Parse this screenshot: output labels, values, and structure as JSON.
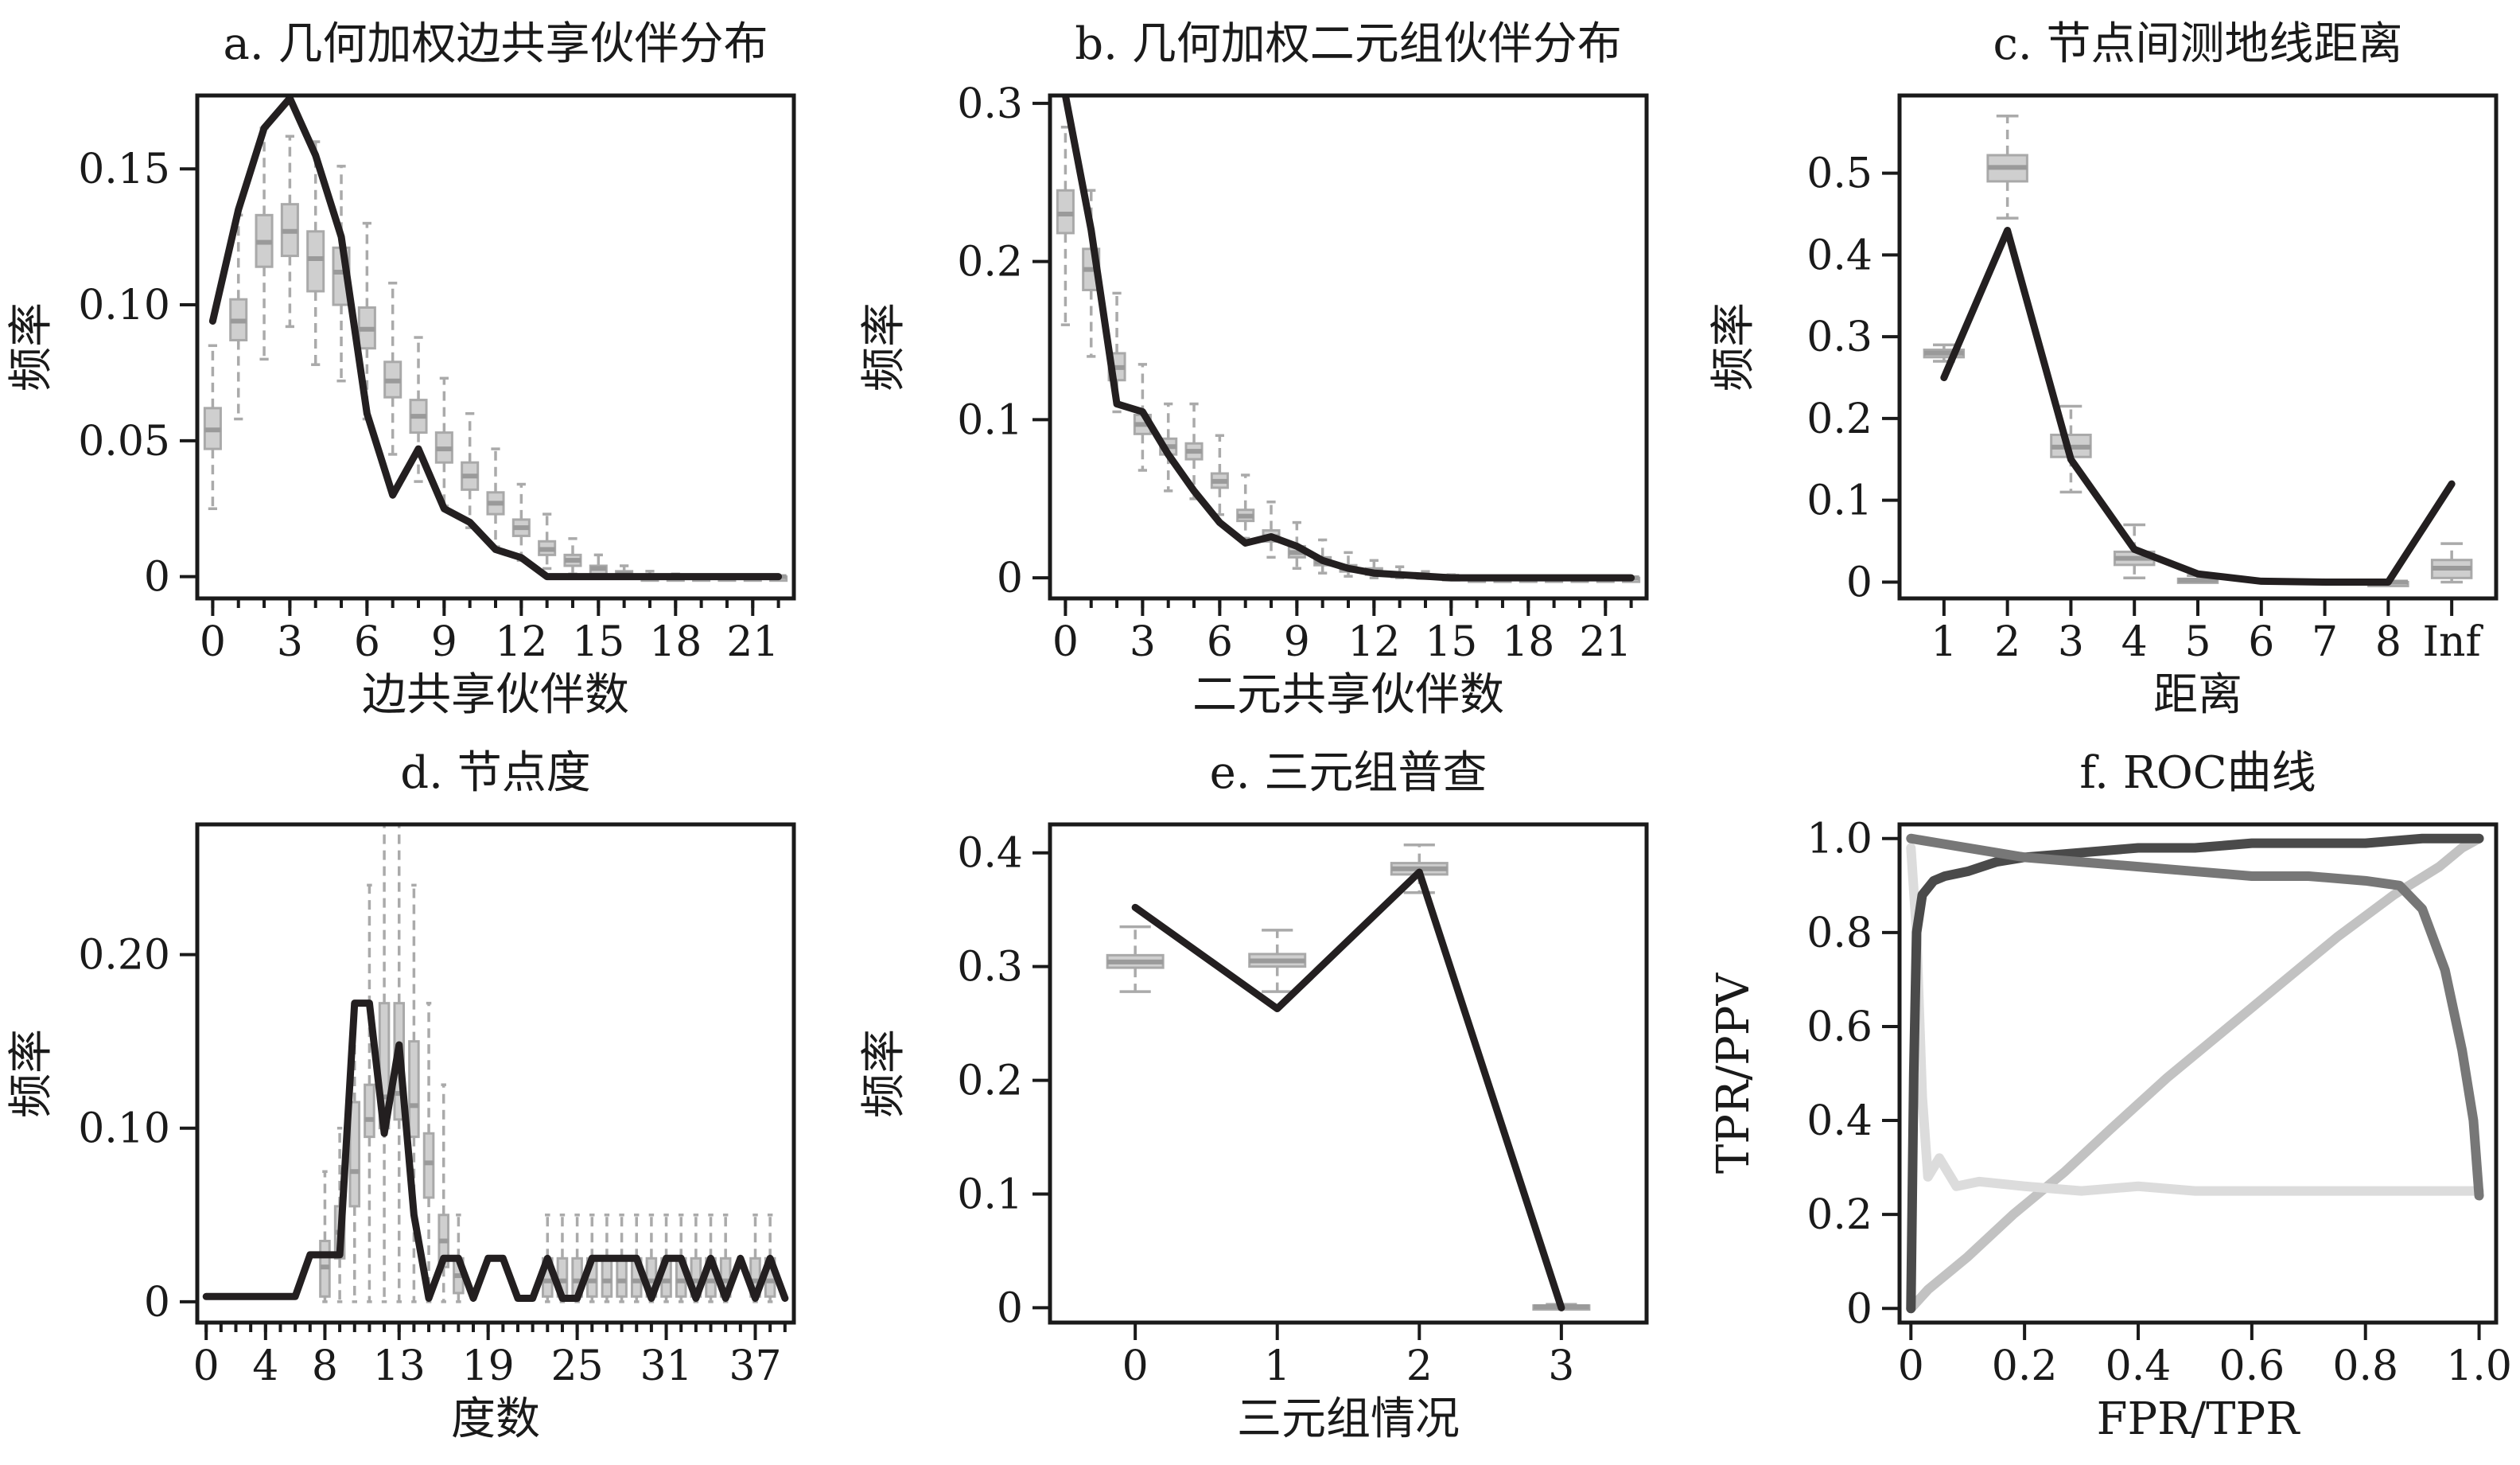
{
  "chart_data": [
    {
      "id": "a",
      "type": "boxplot+line",
      "title": "a. 几何加权边共享伙伴分布",
      "xlabel": "边共享伙伴数",
      "ylabel": "频率",
      "xlim": [
        -0.6,
        22.6
      ],
      "ylim": [
        -0.008,
        0.177
      ],
      "xticks": [
        0,
        3,
        6,
        9,
        12,
        15,
        18,
        21
      ],
      "yticks": [
        0,
        0.05,
        0.1,
        0.15
      ],
      "ytick_labels": [
        "0",
        "0.05",
        "0.10",
        "0.15"
      ],
      "minor_xticks": true,
      "observed": {
        "x": [
          0,
          1,
          2,
          3,
          4,
          5,
          6,
          7,
          8,
          9,
          10,
          11,
          12,
          13,
          14,
          15,
          16,
          17,
          18,
          19,
          20,
          21,
          22
        ],
        "y": [
          0.094,
          0.135,
          0.165,
          0.176,
          0.155,
          0.125,
          0.06,
          0.03,
          0.047,
          0.025,
          0.02,
          0.01,
          0.007,
          0,
          0,
          0,
          0,
          0,
          0,
          0,
          0,
          0,
          0
        ]
      },
      "boxes": {
        "x": [
          0,
          1,
          2,
          3,
          4,
          5,
          6,
          7,
          8,
          9,
          10,
          11,
          12,
          13,
          14,
          15,
          16,
          17,
          18,
          19,
          20,
          21,
          22
        ],
        "median": [
          0.054,
          0.094,
          0.123,
          0.127,
          0.117,
          0.112,
          0.091,
          0.072,
          0.059,
          0.047,
          0.037,
          0.027,
          0.018,
          0.01,
          0.006,
          0.003,
          0.001,
          0,
          0,
          0,
          0,
          0,
          0
        ],
        "q1": [
          0.047,
          0.087,
          0.114,
          0.118,
          0.105,
          0.1,
          0.084,
          0.066,
          0.053,
          0.042,
          0.032,
          0.023,
          0.015,
          0.008,
          0.004,
          0.001,
          0,
          0,
          0,
          0,
          0,
          0,
          0
        ],
        "q3": [
          0.062,
          0.102,
          0.133,
          0.137,
          0.127,
          0.121,
          0.099,
          0.079,
          0.065,
          0.053,
          0.042,
          0.031,
          0.021,
          0.013,
          0.008,
          0.004,
          0.002,
          0,
          0,
          0,
          0,
          0,
          0
        ],
        "low": [
          0.025,
          0.058,
          0.08,
          0.092,
          0.078,
          0.072,
          0.058,
          0.045,
          0.035,
          0.026,
          0.018,
          0.011,
          0.006,
          0.003,
          0.001,
          0,
          0,
          0,
          0,
          0,
          0,
          0,
          0
        ],
        "high": [
          0.085,
          0.133,
          0.165,
          0.162,
          0.16,
          0.151,
          0.13,
          0.108,
          0.088,
          0.073,
          0.06,
          0.047,
          0.034,
          0.023,
          0.014,
          0.008,
          0.004,
          0.002,
          0.001,
          0,
          0,
          0,
          0
        ]
      }
    },
    {
      "id": "b",
      "type": "boxplot+line",
      "title": "b. 几何加权二元组伙伴分布",
      "xlabel": "二元共享伙伴数",
      "ylabel": "频率",
      "xlim": [
        -0.6,
        22.6
      ],
      "ylim": [
        -0.013,
        0.305
      ],
      "xticks": [
        0,
        3,
        6,
        9,
        12,
        15,
        18,
        21
      ],
      "yticks": [
        0,
        0.1,
        0.2,
        0.3
      ],
      "ytick_labels": [
        "0",
        "0.1",
        "0.2",
        "0.3"
      ],
      "minor_xticks": true,
      "observed": {
        "x": [
          0,
          1,
          2,
          3,
          4,
          5,
          6,
          7,
          8,
          9,
          10,
          11,
          12,
          13,
          14,
          15,
          16,
          17,
          18,
          19,
          20,
          21,
          22
        ],
        "y": [
          0.305,
          0.22,
          0.11,
          0.105,
          0.078,
          0.055,
          0.035,
          0.022,
          0.026,
          0.02,
          0.011,
          0.006,
          0.003,
          0.002,
          0.001,
          0,
          0,
          0,
          0,
          0,
          0,
          0,
          0
        ]
      },
      "boxes": {
        "x": [
          0,
          1,
          2,
          3,
          4,
          5,
          6,
          7,
          8,
          9,
          10,
          11,
          12,
          13,
          14,
          15,
          16,
          17,
          18,
          19,
          20,
          21,
          22
        ],
        "median": [
          0.23,
          0.195,
          0.133,
          0.097,
          0.083,
          0.08,
          0.061,
          0.039,
          0.026,
          0.016,
          0.01,
          0.006,
          0.004,
          0.002,
          0.001,
          0.001,
          0,
          0,
          0,
          0,
          0,
          0,
          0
        ],
        "q1": [
          0.218,
          0.182,
          0.125,
          0.091,
          0.078,
          0.075,
          0.057,
          0.036,
          0.023,
          0.013,
          0.008,
          0.004,
          0.002,
          0.001,
          0,
          0,
          0,
          0,
          0,
          0,
          0,
          0,
          0
        ],
        "q3": [
          0.245,
          0.208,
          0.142,
          0.103,
          0.088,
          0.085,
          0.066,
          0.043,
          0.03,
          0.02,
          0.013,
          0.008,
          0.006,
          0.003,
          0.002,
          0.001,
          0,
          0,
          0,
          0,
          0,
          0,
          0
        ],
        "low": [
          0.16,
          0.14,
          0.105,
          0.068,
          0.055,
          0.05,
          0.04,
          0.025,
          0.013,
          0.006,
          0.003,
          0.001,
          0,
          0,
          0,
          0,
          0,
          0,
          0,
          0,
          0,
          0,
          0
        ],
        "high": [
          0.285,
          0.245,
          0.18,
          0.135,
          0.11,
          0.11,
          0.09,
          0.065,
          0.048,
          0.035,
          0.024,
          0.016,
          0.011,
          0.007,
          0.004,
          0.002,
          0.001,
          0.001,
          0,
          0,
          0,
          0,
          0
        ]
      }
    },
    {
      "id": "c",
      "type": "boxplot+line",
      "title": "c. 节点间测地线距离",
      "xlabel": "距离",
      "ylabel": "频率",
      "xlim": [
        0.3,
        9.7
      ],
      "ylim": [
        -0.02,
        0.595
      ],
      "xticks": [
        1,
        2,
        3,
        4,
        5,
        6,
        7,
        8,
        9
      ],
      "xtick_labels": [
        "1",
        "2",
        "3",
        "4",
        "5",
        "6",
        "7",
        "8",
        "Inf"
      ],
      "yticks": [
        0,
        0.1,
        0.2,
        0.3,
        0.4,
        0.5
      ],
      "ytick_labels": [
        "0",
        "0.1",
        "0.2",
        "0.3",
        "0.4",
        "0.5"
      ],
      "minor_xticks": false,
      "observed": {
        "x": [
          1,
          2,
          3,
          4,
          5,
          6,
          7,
          8,
          9
        ],
        "y": [
          0.25,
          0.43,
          0.15,
          0.04,
          0.01,
          0.001,
          0,
          0,
          0.12
        ]
      },
      "boxes": {
        "x": [
          1,
          2,
          3,
          4,
          5,
          8,
          9
        ],
        "median": [
          0.28,
          0.507,
          0.165,
          0.029,
          0.002,
          0,
          0.017
        ],
        "q1": [
          0.275,
          0.49,
          0.153,
          0.021,
          0,
          0,
          0.005
        ],
        "q3": [
          0.284,
          0.522,
          0.18,
          0.037,
          0.004,
          0,
          0.027
        ],
        "low": [
          0.27,
          0.445,
          0.11,
          0.005,
          0,
          0,
          0
        ],
        "high": [
          0.29,
          0.57,
          0.215,
          0.07,
          0.008,
          0,
          0.047
        ]
      }
    },
    {
      "id": "d",
      "type": "boxplot+line",
      "title": "d. 节点度",
      "xlabel": "度数",
      "ylabel": "频率",
      "xlim": [
        -0.6,
        39.6
      ],
      "ylim": [
        -0.012,
        0.275
      ],
      "xticks": [
        0,
        4,
        8,
        13,
        19,
        25,
        31,
        37
      ],
      "yticks": [
        0,
        0.1,
        0.2
      ],
      "ytick_labels": [
        "0",
        "0.10",
        "0.20"
      ],
      "minor_xticks": true,
      "observed": {
        "x": [
          0,
          1,
          2,
          3,
          4,
          5,
          6,
          7,
          8,
          9,
          10,
          11,
          12,
          13,
          14,
          15,
          16,
          17,
          18,
          19,
          20,
          21,
          22,
          23,
          24,
          25,
          26,
          27,
          28,
          29,
          30,
          31,
          32,
          33,
          34,
          35,
          36,
          37,
          38,
          39
        ],
        "y": [
          0.003,
          0.003,
          0.003,
          0.003,
          0.003,
          0.003,
          0.003,
          0.027,
          0.027,
          0.027,
          0.172,
          0.172,
          0.097,
          0.148,
          0.05,
          0.002,
          0.025,
          0.025,
          0.002,
          0.025,
          0.025,
          0.002,
          0.002,
          0.025,
          0.002,
          0.002,
          0.025,
          0.025,
          0.025,
          0.025,
          0.002,
          0.025,
          0.025,
          0.002,
          0.025,
          0.002,
          0.025,
          0.002,
          0.025,
          0.002
        ]
      },
      "boxes": {
        "x": [
          8,
          9,
          10,
          11,
          12,
          13,
          14,
          15,
          16,
          17,
          23,
          24,
          25,
          26,
          27,
          28,
          29,
          30,
          31,
          32,
          33,
          34,
          35,
          37,
          38
        ],
        "median": [
          0.02,
          0.04,
          0.075,
          0.105,
          0.118,
          0.12,
          0.113,
          0.08,
          0.035,
          0.015,
          0.012,
          0.012,
          0.012,
          0.012,
          0.012,
          0.012,
          0.012,
          0.012,
          0.012,
          0.012,
          0.012,
          0.012,
          0.012,
          0.012,
          0.012
        ],
        "q1": [
          0.003,
          0.025,
          0.055,
          0.095,
          0.1,
          0.105,
          0.095,
          0.06,
          0.02,
          0.005,
          0.003,
          0.003,
          0.003,
          0.003,
          0.003,
          0.003,
          0.003,
          0.003,
          0.003,
          0.003,
          0.003,
          0.003,
          0.003,
          0.003,
          0.003
        ],
        "q3": [
          0.035,
          0.055,
          0.115,
          0.125,
          0.172,
          0.172,
          0.15,
          0.097,
          0.05,
          0.025,
          0.025,
          0.025,
          0.025,
          0.025,
          0.025,
          0.025,
          0.025,
          0.025,
          0.025,
          0.025,
          0.025,
          0.025,
          0.025,
          0.025,
          0.025
        ],
        "low": [
          0,
          0,
          0,
          0,
          0,
          0,
          0,
          0,
          0,
          0,
          0,
          0,
          0,
          0,
          0,
          0,
          0,
          0,
          0,
          0,
          0,
          0,
          0,
          0,
          0
        ],
        "high": [
          0.075,
          0.1,
          0.172,
          0.24,
          0.275,
          0.275,
          0.24,
          0.172,
          0.125,
          0.05,
          0.05,
          0.05,
          0.05,
          0.05,
          0.05,
          0.05,
          0.05,
          0.05,
          0.05,
          0.05,
          0.05,
          0.05,
          0.05,
          0.05,
          0.05
        ]
      }
    },
    {
      "id": "e",
      "type": "boxplot+line",
      "title": "e. 三元组普查",
      "xlabel": "三元组情况",
      "ylabel": "频率",
      "xlim": [
        -0.6,
        3.6
      ],
      "ylim": [
        -0.013,
        0.425
      ],
      "xticks": [
        0,
        1,
        2,
        3
      ],
      "yticks": [
        0,
        0.1,
        0.2,
        0.3,
        0.4
      ],
      "ytick_labels": [
        "0",
        "0.1",
        "0.2",
        "0.3",
        "0.4"
      ],
      "minor_xticks": false,
      "observed": {
        "x": [
          0,
          1,
          2,
          3
        ],
        "y": [
          0.352,
          0.263,
          0.383,
          0
        ]
      },
      "boxes": {
        "x": [
          0,
          1,
          2,
          3
        ],
        "median": [
          0.304,
          0.305,
          0.386,
          0.001
        ],
        "q1": [
          0.299,
          0.3,
          0.381,
          0
        ],
        "q3": [
          0.31,
          0.311,
          0.391,
          0.002
        ],
        "low": [
          0.278,
          0.278,
          0.365,
          0
        ],
        "high": [
          0.335,
          0.332,
          0.407,
          0.003
        ]
      }
    },
    {
      "id": "f",
      "type": "line",
      "title": "f. ROC曲线",
      "xlabel": "FPR/TPR",
      "ylabel": "TPR/PPV",
      "xlim": [
        -0.02,
        1.03
      ],
      "ylim": [
        -0.03,
        1.03
      ],
      "xticks": [
        0,
        0.2,
        0.4,
        0.6,
        0.8,
        1.0
      ],
      "xtick_labels": [
        "0",
        "0.2",
        "0.4",
        "0.6",
        "0.8",
        "1.0"
      ],
      "yticks": [
        0,
        0.2,
        0.4,
        0.6,
        0.8,
        1.0
      ],
      "ytick_labels": [
        "0",
        "0.2",
        "0.4",
        "0.6",
        "0.8",
        "1.0"
      ],
      "minor_xticks": false,
      "series": [
        {
          "color": "#c2c2c2",
          "x": [
            0,
            0.03,
            0.1,
            0.18,
            0.27,
            0.35,
            0.45,
            0.55,
            0.65,
            0.75,
            0.85,
            0.93,
            0.97,
            1.0
          ],
          "y": [
            0,
            0.04,
            0.11,
            0.2,
            0.29,
            0.38,
            0.49,
            0.59,
            0.69,
            0.79,
            0.88,
            0.94,
            0.98,
            1.0
          ]
        },
        {
          "color": "#dcdcdc",
          "x": [
            0,
            0.01,
            0.02,
            0.03,
            0.05,
            0.08,
            0.12,
            0.2,
            0.3,
            0.4,
            0.5,
            0.6,
            0.7,
            0.8,
            0.9,
            0.97,
            1.0
          ],
          "y": [
            0.98,
            0.8,
            0.45,
            0.28,
            0.32,
            0.26,
            0.27,
            0.26,
            0.25,
            0.26,
            0.25,
            0.25,
            0.25,
            0.25,
            0.25,
            0.25,
            0.25
          ]
        },
        {
          "color": "#4a4a4a",
          "x": [
            0,
            0.005,
            0.01,
            0.02,
            0.04,
            0.06,
            0.1,
            0.15,
            0.2,
            0.3,
            0.4,
            0.5,
            0.6,
            0.7,
            0.8,
            0.9,
            0.95,
            1.0
          ],
          "y": [
            0,
            0.5,
            0.8,
            0.88,
            0.91,
            0.92,
            0.93,
            0.95,
            0.96,
            0.97,
            0.98,
            0.98,
            0.99,
            0.99,
            0.99,
            1.0,
            1.0,
            1.0
          ]
        },
        {
          "color": "#777777",
          "x": [
            0,
            0.05,
            0.1,
            0.2,
            0.3,
            0.4,
            0.5,
            0.6,
            0.7,
            0.8,
            0.86,
            0.9,
            0.94,
            0.97,
            0.99,
            1.0
          ],
          "y": [
            1.0,
            0.99,
            0.98,
            0.96,
            0.95,
            0.94,
            0.93,
            0.92,
            0.92,
            0.91,
            0.9,
            0.85,
            0.72,
            0.55,
            0.4,
            0.24
          ]
        }
      ]
    }
  ]
}
